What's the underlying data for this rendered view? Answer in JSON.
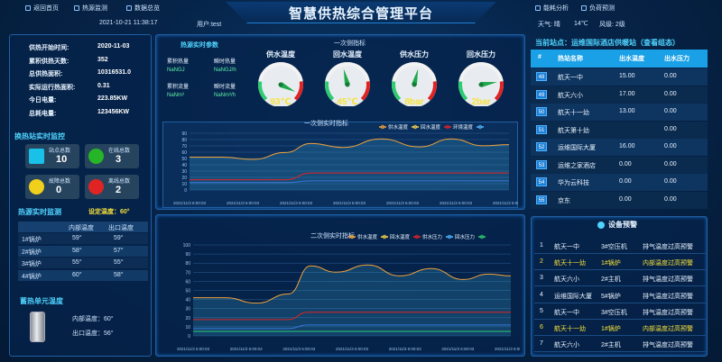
{
  "header": {
    "title": "智慧供热综合管理平台",
    "nav_left": [
      "返回首页",
      "热源监测",
      "数据总览"
    ],
    "nav_right": [
      "能耗分析",
      "负荷预测"
    ],
    "datetime": "2021-10-21 11:38:17",
    "user": "用户:test",
    "weather": "天气: 晴",
    "temperature": "14℃",
    "wind": "风级: 2级"
  },
  "summary": {
    "rows": [
      {
        "label": "供热开始时间:",
        "value": "2020-11-03"
      },
      {
        "label": "累积供热天数:",
        "value": "352"
      },
      {
        "label": "总供热面积:",
        "value": "10316531.0"
      },
      {
        "label": "实际运行热面积:",
        "value": "0.31"
      },
      {
        "label": "今日电量:",
        "value": "223.85KW"
      },
      {
        "label": "总耗电量:",
        "value": "123456KW"
      }
    ]
  },
  "station_monitor": {
    "title": "换热站实时监控",
    "tiles": [
      {
        "label": "站点总数",
        "value": "10",
        "color": "#19c1e8"
      },
      {
        "label": "在线总数",
        "value": "3",
        "color": "#26b526"
      },
      {
        "label": "故障总数",
        "value": "0",
        "color": "#f0d01a"
      },
      {
        "label": "离线总数",
        "value": "2",
        "color": "#e02424"
      }
    ]
  },
  "source_monitor": {
    "title": "热源实时监测",
    "set_temp": "设定温度：60°",
    "headers": [
      "",
      "内部温度",
      "出口温度"
    ],
    "rows": [
      [
        "1#锅炉",
        "59°",
        "59°"
      ],
      [
        "2#锅炉",
        "58°",
        "57°"
      ],
      [
        "3#锅炉",
        "55°",
        "55°"
      ],
      [
        "4#锅炉",
        "60°",
        "58°"
      ]
    ]
  },
  "storage": {
    "title": "蓄热单元温度",
    "inner": "内部温度：60°",
    "outlet": "出口温度：56°"
  },
  "params": {
    "title": "热源实时参数",
    "items": [
      [
        "累积热量",
        "瞬时热量"
      ],
      [
        "NaNGJ",
        "NaNGJ/h"
      ],
      [
        "累积流量",
        "瞬时流量"
      ],
      [
        "NaNm³",
        "NaNm³/h"
      ]
    ]
  },
  "primary": {
    "title": "一次侧指标",
    "gauges": [
      {
        "label": "供水温度",
        "value": "93℃",
        "level": 0.93,
        "color": "#f6e23b",
        "max": "100"
      },
      {
        "label": "回水温度",
        "value": "45℃",
        "level": 0.45,
        "color": "#f6e23b",
        "max": "100"
      },
      {
        "label": "供水压力",
        "value": "8bar",
        "level": 0.55,
        "color": "#f6e23b",
        "max": ""
      },
      {
        "label": "回水压力",
        "value": "2bar",
        "level": 0.8,
        "color": "#f6e23b",
        "max": ""
      }
    ]
  },
  "chart1": {
    "title": "一次侧实时指标",
    "legend": [
      "供水温度",
      "回水温度",
      "环境温度",
      ""
    ],
    "legend_colors": [
      "#f2a33a",
      "#f6d24a",
      "#e02424",
      "#4fb3ff"
    ],
    "ylabels": [
      "90",
      "80",
      "70",
      "60",
      "50",
      "40",
      "30",
      "20",
      "10",
      "0"
    ],
    "xlabels": [
      "2021/11/3 6:00:03",
      "2021/11/3 6:00:03",
      "2021/11/3 6:00:03",
      "2021/11/3 6:00:03",
      "2021/11/3 6:00:03",
      "2021/11/3 6:00:03",
      "2021/11/3 6:00:03"
    ]
  },
  "chart2": {
    "title": "二次侧实时指标",
    "legend": [
      "供水温度",
      "回水温度",
      "供水压力",
      "回水压力",
      ""
    ],
    "legend_colors": [
      "#f2a33a",
      "#f6d24a",
      "#e02424",
      "#4fb3ff",
      "#2ecc71"
    ],
    "ylabels": [
      "100",
      "90",
      "80",
      "70",
      "60",
      "50",
      "40",
      "30",
      "20",
      "10",
      "0"
    ],
    "xlabels": [
      "2021/11/3 6:00:03",
      "2021/11/3 6:00:03",
      "2021/11/3 6:00:03",
      "2021/11/3 6:00:03",
      "2021/11/3 6:00:03",
      "2021/11/3 6:00:03",
      "2021/11/3 6:00:03"
    ]
  },
  "current_station": {
    "label": "当前站点：运维国际酒店供暖站（查看组态）",
    "headers": [
      "#",
      "热站名称",
      "出水温度",
      "出水压力"
    ],
    "rows": [
      [
        "48",
        "航天一中",
        "15.00",
        "0.00"
      ],
      [
        "49",
        "航天六小",
        "17.00",
        "0.00"
      ],
      [
        "50",
        "航天十一幼",
        "13.00",
        "0.00"
      ],
      [
        "51",
        "航天第十幼",
        "",
        "0.00"
      ],
      [
        "52",
        "运维国际大厦",
        "16.00",
        "0.00"
      ],
      [
        "53",
        "运维之家酒店",
        "0.00",
        "0.00"
      ],
      [
        "54",
        "华为云科技",
        "0.00",
        "0.00"
      ],
      [
        "55",
        "京东",
        "0.00",
        "0.00"
      ]
    ]
  },
  "alarms": {
    "title": "设备预警",
    "rows": [
      [
        "1",
        "航天一中",
        "3#空压机",
        "排气温度过高预警",
        "#e8f4ff"
      ],
      [
        "2",
        "航天十一幼",
        "1#锅炉",
        "内部温度过高预警",
        "#f6e23b"
      ],
      [
        "3",
        "航天六小",
        "2#主机",
        "排气温度过高预警",
        "#e8f4ff"
      ],
      [
        "4",
        "运维国际大厦",
        "5#锅炉",
        "排气温度过高预警",
        "#e8f4ff"
      ],
      [
        "5",
        "航天一中",
        "3#空压机",
        "排气温度过高预警",
        "#e8f4ff"
      ],
      [
        "6",
        "航天十一幼",
        "1#锅炉",
        "内部温度过高预警",
        "#f6e23b"
      ],
      [
        "7",
        "航天六小",
        "2#主机",
        "排气温度过高预警",
        "#e8f4ff"
      ]
    ]
  }
}
